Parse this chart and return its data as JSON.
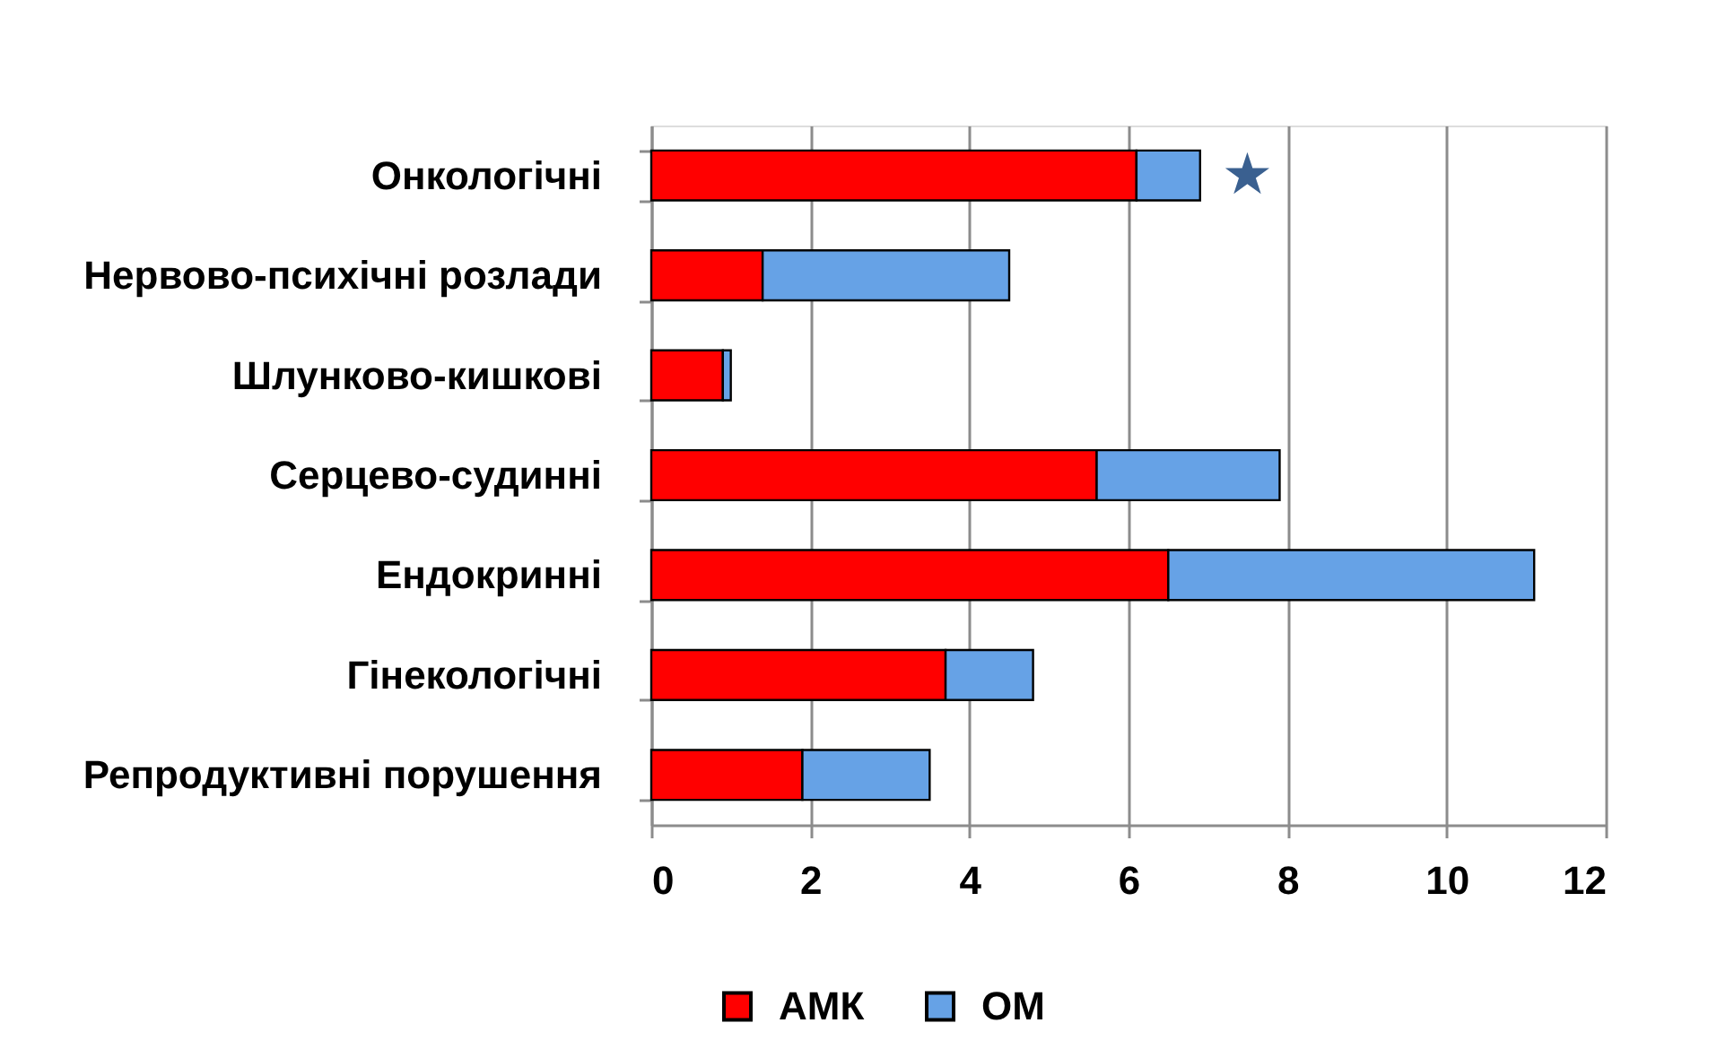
{
  "chart_data": {
    "type": "bar",
    "orientation": "horizontal",
    "stacked": true,
    "categories": [
      "Онкологічні",
      "Нервово-психічні розлади",
      "Шлунково-кишкові",
      "Серцево-судинні ",
      "Ендокринні",
      "Гінекологічні ",
      "Репродуктивні порушення"
    ],
    "series": [
      {
        "name": "АМК",
        "color": "#ff0000",
        "values": [
          6.1,
          1.4,
          0.9,
          5.6,
          6.5,
          3.7,
          1.9
        ]
      },
      {
        "name": "ОМ",
        "color": "#66a2e6",
        "values": [
          0.8,
          3.1,
          0.1,
          2.3,
          4.6,
          1.1,
          1.6
        ]
      }
    ],
    "xlim": [
      0,
      12
    ],
    "xticks": [
      0,
      2,
      4,
      6,
      8,
      10,
      12
    ],
    "grid": "x",
    "legend": "bottom",
    "annotations": [
      {
        "text": "★",
        "x": 6.9,
        "y": "Онкологічні"
      }
    ]
  }
}
